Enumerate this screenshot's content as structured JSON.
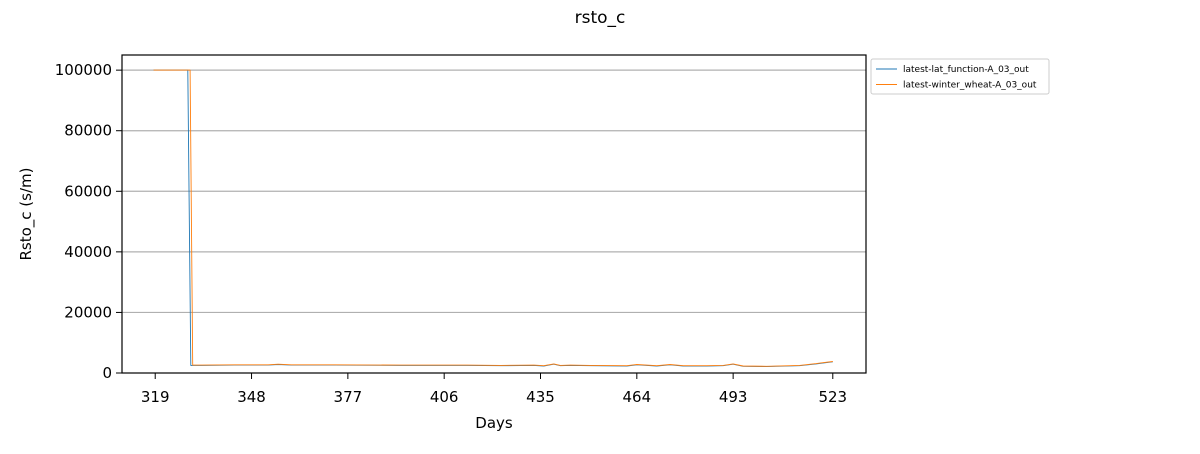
{
  "chart_data": {
    "type": "line",
    "title": "rsto_c",
    "xlabel": "Days",
    "ylabel": "Rsto_c (s/m)",
    "xlim": [
      309,
      533
    ],
    "ylim": [
      0,
      105000
    ],
    "xticks": [
      319,
      348,
      377,
      406,
      435,
      464,
      493,
      523
    ],
    "yticks": [
      0,
      20000,
      40000,
      60000,
      80000,
      100000
    ],
    "ytick_labels": [
      "0",
      "20000",
      "40000",
      "60000",
      "80000",
      "100000"
    ],
    "grid": "y",
    "legend": "upper-right-outside",
    "series": [
      {
        "name": "latest-lat_function-A_03_out",
        "color": "#1f77b4",
        "x": [
          318.5,
          328.8,
          329.7,
          333,
          343,
          353,
          356,
          360,
          373,
          393,
          413,
          423,
          433,
          436,
          439,
          441,
          444,
          450,
          461,
          464,
          470,
          474,
          478,
          485,
          490,
          493,
          496,
          503,
          513,
          518,
          520,
          523
        ],
        "y": [
          100000,
          100000,
          2500,
          2500,
          2600,
          2600,
          2800,
          2600,
          2600,
          2500,
          2500,
          2400,
          2500,
          2300,
          2900,
          2400,
          2500,
          2400,
          2300,
          2700,
          2300,
          2700,
          2300,
          2300,
          2400,
          2900,
          2200,
          2100,
          2400,
          3000,
          3300,
          3700
        ]
      },
      {
        "name": "latest-winter_wheat-A_03_out",
        "color": "#ff7f0e",
        "x": [
          318.5,
          329.5,
          330.3,
          333,
          343,
          353,
          356,
          360,
          373,
          393,
          413,
          423,
          433,
          436,
          439,
          441,
          444,
          450,
          461,
          464,
          470,
          474,
          478,
          485,
          490,
          493,
          496,
          503,
          513,
          518,
          520,
          523
        ],
        "y": [
          100000,
          100000,
          2600,
          2600,
          2700,
          2700,
          2900,
          2700,
          2700,
          2600,
          2600,
          2500,
          2600,
          2400,
          3000,
          2500,
          2600,
          2500,
          2400,
          2800,
          2400,
          2800,
          2400,
          2400,
          2500,
          3000,
          2300,
          2200,
          2500,
          3100,
          3400,
          3800
        ]
      }
    ]
  }
}
